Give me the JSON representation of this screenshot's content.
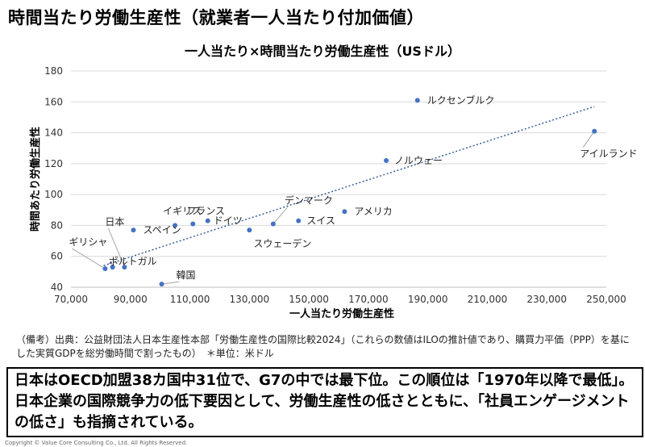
{
  "page_title": "時間当たり労働生産性（就業者一人当たり付加価値）",
  "note": "（備考）出典：公益財団法人日本生産性本部「労働生産性の国際比較2024」（これらの数値はILOの推計値であり、購買力平価（PPP）を基にした実質GDPを総労働時間で割ったもの）　＊単位：米ドル",
  "summary": "日本はOECD加盟38カ国中31位で、G7の中では最下位。この順位は「1970年以降で最低」。日本企業の国際競争力の低下要因として、労働生産性の低さとともに、「社員エンゲージメントの低さ」も指摘されている。",
  "copyright": "Copyright © Value Core Consulting Co., Ltd.  All Rights Reserved.",
  "colors": {
    "point": "#4472C4",
    "trend": "#2E5597",
    "grid": "#D9D9D9"
  },
  "chart_data": {
    "type": "scatter",
    "title": "一人当たり×時間当たり労働生産性（USドル）",
    "xlabel": "一人当たり労働生産性",
    "ylabel": "時間あたり労働生産性",
    "xlim": [
      70000,
      250000
    ],
    "ylim": [
      40,
      180
    ],
    "xticks": [
      70000,
      90000,
      110000,
      130000,
      150000,
      170000,
      190000,
      210000,
      230000,
      250000
    ],
    "xtick_labels": [
      "70,000",
      "90,000",
      "110,000",
      "130,000",
      "150,000",
      "170,000",
      "190,000",
      "210,000",
      "230,000",
      "250,000"
    ],
    "yticks": [
      40,
      60,
      80,
      100,
      120,
      140,
      160,
      180
    ],
    "ytick_labels": [
      "40",
      "60",
      "80",
      "100",
      "120",
      "140",
      "160",
      "180"
    ],
    "grid": "horizontal",
    "trendline": {
      "from": [
        81000,
        54
      ],
      "to": [
        246000,
        157
      ]
    },
    "points": [
      {
        "label": "ルクセンブルク",
        "x": 186500,
        "y": 161
      },
      {
        "label": "アイルランド",
        "x": 246000,
        "y": 141
      },
      {
        "label": "ノルウェー",
        "x": 176000,
        "y": 122
      },
      {
        "label": "アメリカ",
        "x": 162000,
        "y": 89
      },
      {
        "label": "デンマーク",
        "x": 138000,
        "y": 81
      },
      {
        "label": "スイス",
        "x": 146500,
        "y": 83
      },
      {
        "label": "スウェーデン",
        "x": 130000,
        "y": 77
      },
      {
        "label": "ドイツ",
        "x": 116000,
        "y": 83
      },
      {
        "label": "フランス",
        "x": 111000,
        "y": 81
      },
      {
        "label": "イギリス",
        "x": 105000,
        "y": 80
      },
      {
        "label": "スペイン",
        "x": 91000,
        "y": 77
      },
      {
        "label": "日本",
        "x": 88000,
        "y": 53
      },
      {
        "label": "ポルトガル",
        "x": 84000,
        "y": 53
      },
      {
        "label": "ギリシャ",
        "x": 81500,
        "y": 52
      },
      {
        "label": "韓国",
        "x": 100500,
        "y": 42
      }
    ]
  }
}
